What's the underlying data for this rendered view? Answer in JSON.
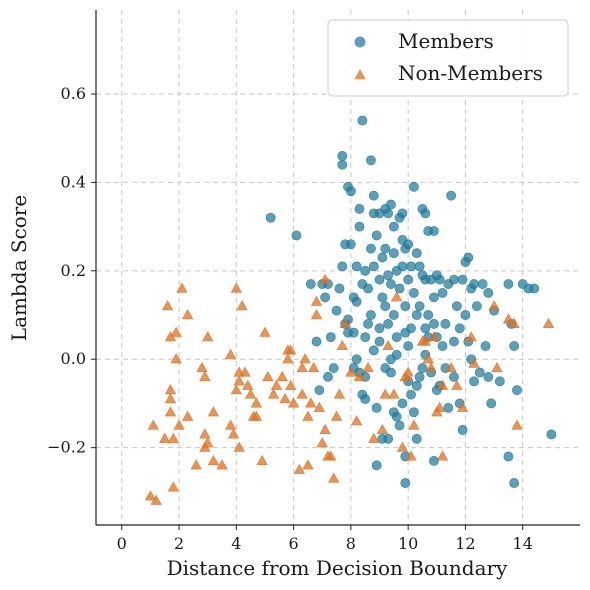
{
  "chart_data": {
    "type": "scatter",
    "xlabel": "Distance from Decision Boundary",
    "ylabel": "Lambda Score",
    "xlim": [
      -0.9,
      16.0
    ],
    "ylim": [
      -0.375,
      0.79
    ],
    "xticks": [
      0,
      2,
      4,
      6,
      8,
      10,
      12,
      14
    ],
    "yticks": [
      -0.2,
      0.0,
      0.2,
      0.4,
      0.6
    ],
    "ytick_labels": [
      "−0.2",
      "0.0",
      "0.2",
      "0.4",
      "0.6"
    ],
    "grid": true,
    "legend_position": "top-right",
    "series": [
      {
        "name": "Members",
        "marker": "circle",
        "color": "#1f7a9a",
        "points": [
          [
            5.2,
            0.32
          ],
          [
            6.1,
            0.28
          ],
          [
            6.6,
            0.17
          ],
          [
            6.8,
            0.04
          ],
          [
            6.9,
            -0.07
          ],
          [
            7.0,
            0.17
          ],
          [
            7.1,
            0.14
          ],
          [
            7.2,
            0.17
          ],
          [
            7.3,
            0.05
          ],
          [
            7.4,
            -0.02
          ],
          [
            7.5,
            0.11
          ],
          [
            7.6,
            0.16
          ],
          [
            7.7,
            0.46
          ],
          [
            7.7,
            0.44
          ],
          [
            7.7,
            0.21
          ],
          [
            7.8,
            0.26
          ],
          [
            7.8,
            0.08
          ],
          [
            7.9,
            0.39
          ],
          [
            7.9,
            0.06
          ],
          [
            8.0,
            0.38
          ],
          [
            8.0,
            0.26
          ],
          [
            8.1,
            0.14
          ],
          [
            8.1,
            -0.02
          ],
          [
            8.2,
            0.21
          ],
          [
            8.2,
            0.13
          ],
          [
            8.3,
            0.34
          ],
          [
            8.3,
            0.3
          ],
          [
            8.4,
            0.54
          ],
          [
            8.4,
            0.17
          ],
          [
            8.4,
            -0.08
          ],
          [
            8.5,
            0.2
          ],
          [
            8.5,
            0.05
          ],
          [
            8.5,
            -0.04
          ],
          [
            8.6,
            0.16
          ],
          [
            8.7,
            0.45
          ],
          [
            8.7,
            0.25
          ],
          [
            8.8,
            0.37
          ],
          [
            8.8,
            0.33
          ],
          [
            8.8,
            0.21
          ],
          [
            8.8,
            0.02
          ],
          [
            8.9,
            0.28
          ],
          [
            8.9,
            -0.11
          ],
          [
            9.0,
            0.33
          ],
          [
            9.0,
            0.18
          ],
          [
            9.0,
            0.04
          ],
          [
            9.1,
            0.23
          ],
          [
            9.1,
            -0.18
          ],
          [
            9.2,
            0.34
          ],
          [
            9.2,
            0.25
          ],
          [
            9.2,
            0.12
          ],
          [
            9.3,
            0.33
          ],
          [
            9.3,
            0.19
          ],
          [
            9.3,
            0.08
          ],
          [
            9.4,
            0.35
          ],
          [
            9.4,
            0.17
          ],
          [
            9.4,
            -0.03
          ],
          [
            9.5,
            0.3
          ],
          [
            9.5,
            0.24
          ],
          [
            9.5,
            0.1
          ],
          [
            9.6,
            0.2
          ],
          [
            9.6,
            0.05
          ],
          [
            9.6,
            -0.13
          ],
          [
            9.7,
            0.32
          ],
          [
            9.7,
            0.16
          ],
          [
            9.8,
            0.33
          ],
          [
            9.8,
            0.27
          ],
          [
            9.8,
            0.21
          ],
          [
            9.9,
            0.25
          ],
          [
            9.9,
            0.12
          ],
          [
            9.9,
            -0.22
          ],
          [
            10.0,
            0.26
          ],
          [
            10.0,
            0.18
          ],
          [
            10.0,
            0.03
          ],
          [
            10.1,
            0.21
          ],
          [
            10.1,
            0.07
          ],
          [
            10.2,
            0.39
          ],
          [
            10.2,
            0.15
          ],
          [
            10.3,
            0.24
          ],
          [
            10.3,
            0.1
          ],
          [
            10.3,
            -0.06
          ],
          [
            10.4,
            0.21
          ],
          [
            10.4,
            0.12
          ],
          [
            10.5,
            0.34
          ],
          [
            10.5,
            0.19
          ],
          [
            10.6,
            0.33
          ],
          [
            10.6,
            0.18
          ],
          [
            10.6,
            0.01
          ],
          [
            10.7,
            0.29
          ],
          [
            10.7,
            0.1
          ],
          [
            10.8,
            0.18
          ],
          [
            10.8,
            -0.03
          ],
          [
            10.9,
            0.29
          ],
          [
            10.9,
            0.14
          ],
          [
            11.0,
            0.19
          ],
          [
            11.0,
            0.05
          ],
          [
            11.1,
            0.18
          ],
          [
            11.1,
            -0.06
          ],
          [
            11.2,
            0.15
          ],
          [
            11.3,
            0.08
          ],
          [
            11.4,
            0.17
          ],
          [
            11.4,
            -0.11
          ],
          [
            11.5,
            0.37
          ],
          [
            11.6,
            0.18
          ],
          [
            11.6,
            0.04
          ],
          [
            11.7,
            0.12
          ],
          [
            11.8,
            0.07
          ],
          [
            11.9,
            0.18
          ],
          [
            11.9,
            -0.16
          ],
          [
            12.0,
            0.22
          ],
          [
            12.0,
            0.1
          ],
          [
            12.1,
            0.23
          ],
          [
            12.1,
            0.04
          ],
          [
            12.2,
            0.16
          ],
          [
            12.3,
            0.17
          ],
          [
            12.4,
            0.12
          ],
          [
            12.5,
            -0.03
          ],
          [
            12.6,
            0.17
          ],
          [
            12.7,
            0.03
          ],
          [
            12.8,
            0.15
          ],
          [
            12.9,
            -0.1
          ],
          [
            13.0,
            0.11
          ],
          [
            13.2,
            -0.05
          ],
          [
            13.5,
            0.17
          ],
          [
            13.5,
            -0.22
          ],
          [
            13.6,
            0.08
          ],
          [
            13.7,
            0.03
          ],
          [
            13.7,
            -0.28
          ],
          [
            13.8,
            -0.07
          ],
          [
            14.0,
            0.17
          ],
          [
            14.2,
            0.16
          ],
          [
            14.4,
            0.16
          ],
          [
            15.0,
            -0.17
          ],
          [
            9.9,
            -0.28
          ],
          [
            8.9,
            -0.24
          ],
          [
            9.3,
            -0.18
          ],
          [
            9.7,
            -0.15
          ],
          [
            10.3,
            -0.18
          ],
          [
            10.9,
            -0.23
          ],
          [
            10.1,
            -0.08
          ],
          [
            9.5,
            -0.12
          ],
          [
            8.5,
            -0.09
          ],
          [
            8.7,
            0.1
          ],
          [
            9.0,
            0.07
          ],
          [
            9.4,
            0.0
          ],
          [
            10.5,
            -0.02
          ],
          [
            10.7,
            0.05
          ],
          [
            10.9,
            0.08
          ],
          [
            11.2,
            0.03
          ],
          [
            11.6,
            -0.04
          ],
          [
            12.3,
            -0.05
          ],
          [
            12.8,
            -0.04
          ],
          [
            9.2,
            -0.02
          ],
          [
            8.3,
            -0.03
          ],
          [
            9.6,
            0.01
          ],
          [
            10.0,
            -0.05
          ],
          [
            7.2,
            -0.04
          ],
          [
            8.2,
            0.0
          ],
          [
            11.8,
            -0.1
          ],
          [
            9.1,
            0.14
          ],
          [
            10.2,
            -0.12
          ],
          [
            9.8,
            -0.1
          ],
          [
            10.6,
            0.07
          ],
          [
            11.3,
            -0.02
          ],
          [
            8.6,
            0.08
          ],
          [
            9.9,
            0.06
          ],
          [
            10.4,
            -0.04
          ],
          [
            7.9,
            0.09
          ],
          [
            8.1,
            0.06
          ],
          [
            12.2,
            0.0
          ],
          [
            11.0,
            -0.07
          ]
        ]
      },
      {
        "name": "Non-Members",
        "marker": "triangle",
        "color": "#e07020",
        "points": [
          [
            1.0,
            -0.31
          ],
          [
            1.1,
            -0.15
          ],
          [
            1.2,
            -0.32
          ],
          [
            1.5,
            -0.18
          ],
          [
            1.6,
            0.12
          ],
          [
            1.7,
            0.05
          ],
          [
            1.7,
            -0.07
          ],
          [
            1.7,
            -0.09
          ],
          [
            1.7,
            -0.12
          ],
          [
            1.8,
            -0.18
          ],
          [
            1.8,
            -0.29
          ],
          [
            1.9,
            0.06
          ],
          [
            1.9,
            0.0
          ],
          [
            2.0,
            -0.15
          ],
          [
            2.1,
            0.16
          ],
          [
            2.3,
            0.1
          ],
          [
            2.3,
            -0.13
          ],
          [
            2.6,
            -0.24
          ],
          [
            2.8,
            -0.02
          ],
          [
            2.9,
            -0.04
          ],
          [
            2.9,
            -0.17
          ],
          [
            2.9,
            -0.2
          ],
          [
            3.0,
            -0.19
          ],
          [
            3.0,
            0.05
          ],
          [
            3.2,
            -0.12
          ],
          [
            3.2,
            -0.23
          ],
          [
            3.5,
            -0.24
          ],
          [
            3.8,
            0.01
          ],
          [
            3.8,
            -0.15
          ],
          [
            3.9,
            -0.17
          ],
          [
            4.0,
            0.16
          ],
          [
            4.0,
            -0.07
          ],
          [
            4.1,
            -0.03
          ],
          [
            4.1,
            -0.05
          ],
          [
            4.1,
            -0.2
          ],
          [
            4.2,
            0.12
          ],
          [
            4.3,
            -0.03
          ],
          [
            4.4,
            -0.06
          ],
          [
            4.5,
            -0.08
          ],
          [
            4.6,
            -0.13
          ],
          [
            4.7,
            -0.1
          ],
          [
            4.7,
            -0.13
          ],
          [
            4.9,
            -0.23
          ],
          [
            5.0,
            0.06
          ],
          [
            5.1,
            -0.04
          ],
          [
            5.3,
            -0.08
          ],
          [
            5.4,
            -0.06
          ],
          [
            5.6,
            -0.04
          ],
          [
            5.7,
            -0.09
          ],
          [
            5.8,
            0.02
          ],
          [
            5.8,
            0.0
          ],
          [
            5.9,
            0.02
          ],
          [
            5.9,
            -0.06
          ],
          [
            6.0,
            -0.1
          ],
          [
            6.2,
            -0.25
          ],
          [
            6.3,
            -0.08
          ],
          [
            6.3,
            -0.02
          ],
          [
            6.4,
            0.0
          ],
          [
            6.5,
            -0.24
          ],
          [
            6.5,
            -0.13
          ],
          [
            6.6,
            -0.1
          ],
          [
            6.7,
            -0.02
          ],
          [
            6.8,
            0.13
          ],
          [
            6.9,
            -0.11
          ],
          [
            7.0,
            -0.19
          ],
          [
            7.1,
            -0.16
          ],
          [
            7.1,
            0.18
          ],
          [
            7.2,
            -0.22
          ],
          [
            7.3,
            -0.22
          ],
          [
            7.4,
            -0.27
          ],
          [
            7.5,
            -0.13
          ],
          [
            7.6,
            -0.08
          ],
          [
            7.7,
            0.03
          ],
          [
            7.8,
            0.08
          ],
          [
            8.0,
            -0.03
          ],
          [
            8.2,
            -0.14
          ],
          [
            8.3,
            -0.04
          ],
          [
            8.6,
            -0.02
          ],
          [
            8.8,
            -0.18
          ],
          [
            9.1,
            -0.16
          ],
          [
            9.2,
            -0.08
          ],
          [
            9.3,
            0.03
          ],
          [
            9.5,
            -0.08
          ],
          [
            9.6,
            0.14
          ],
          [
            9.8,
            -0.2
          ],
          [
            9.9,
            -0.04
          ],
          [
            10.0,
            -0.03
          ],
          [
            10.1,
            -0.22
          ],
          [
            10.2,
            -0.15
          ],
          [
            10.5,
            0.04
          ],
          [
            10.6,
            0.04
          ],
          [
            10.7,
            0.0
          ],
          [
            10.8,
            -0.02
          ],
          [
            10.9,
            0.05
          ],
          [
            11.0,
            -0.12
          ],
          [
            11.1,
            -0.11
          ],
          [
            11.2,
            -0.06
          ],
          [
            11.2,
            -0.22
          ],
          [
            11.5,
            -0.02
          ],
          [
            11.7,
            -0.06
          ],
          [
            11.9,
            -0.11
          ],
          [
            12.2,
            0.05
          ],
          [
            12.3,
            -0.01
          ],
          [
            13.0,
            0.12
          ],
          [
            13.1,
            -0.02
          ],
          [
            13.5,
            0.09
          ],
          [
            13.7,
            0.08
          ],
          [
            13.8,
            -0.15
          ],
          [
            14.9,
            0.08
          ],
          [
            6.8,
            0.1
          ]
        ]
      }
    ]
  }
}
